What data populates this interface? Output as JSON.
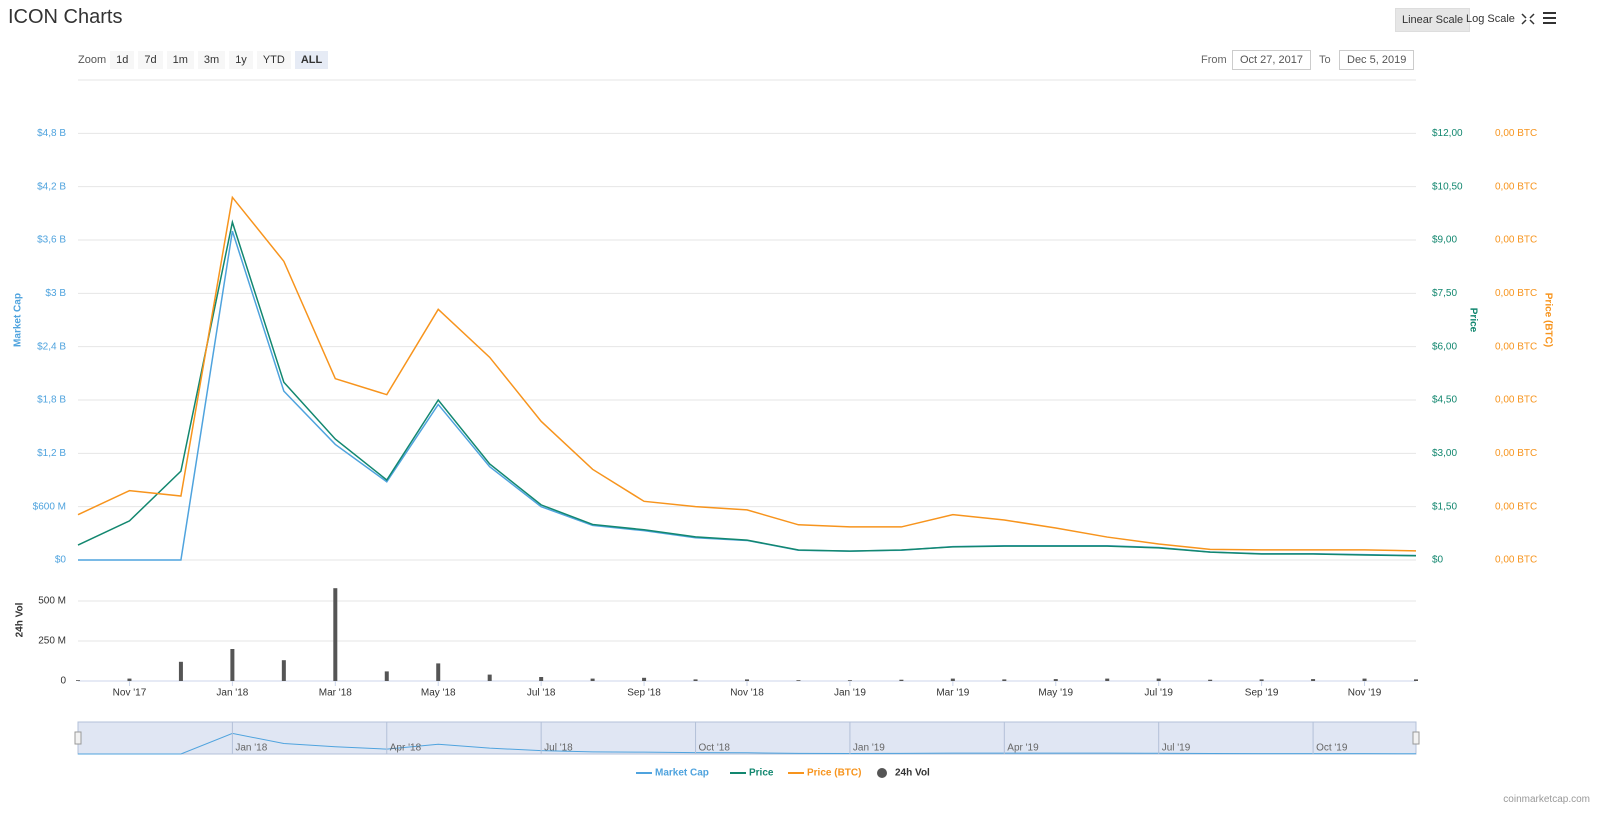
{
  "header": {
    "title": "ICON Charts",
    "scale_buttons": [
      "Linear Scale",
      "Log Scale"
    ]
  },
  "zoom": {
    "label": "Zoom",
    "options": [
      "1d",
      "7d",
      "1m",
      "3m",
      "1y",
      "YTD",
      "ALL"
    ],
    "active": "ALL"
  },
  "range": {
    "from_label": "From",
    "from": "Oct 27, 2017",
    "to_label": "To",
    "to": "Dec 5, 2019"
  },
  "chart_data": {
    "type": "line",
    "x": [
      "2017-10",
      "2017-11",
      "2017-12",
      "2018-01",
      "2018-02",
      "2018-03",
      "2018-04",
      "2018-05",
      "2018-06",
      "2018-07",
      "2018-08",
      "2018-09",
      "2018-10",
      "2018-11",
      "2018-12",
      "2019-01",
      "2019-02",
      "2019-03",
      "2019-04",
      "2019-05",
      "2019-06",
      "2019-07",
      "2019-08",
      "2019-09",
      "2019-10",
      "2019-11",
      "2019-12"
    ],
    "xlim": [
      "2017-10",
      "2019-12"
    ],
    "xticks": [
      {
        "value": "2017-11",
        "label": "Nov '17"
      },
      {
        "value": "2018-01",
        "label": "Jan '18"
      },
      {
        "value": "2018-03",
        "label": "Mar '18"
      },
      {
        "value": "2018-05",
        "label": "May '18"
      },
      {
        "value": "2018-07",
        "label": "Jul '18"
      },
      {
        "value": "2018-09",
        "label": "Sep '18"
      },
      {
        "value": "2018-11",
        "label": "Nov '18"
      },
      {
        "value": "2019-01",
        "label": "Jan '19"
      },
      {
        "value": "2019-03",
        "label": "Mar '19"
      },
      {
        "value": "2019-05",
        "label": "May '19"
      },
      {
        "value": "2019-07",
        "label": "Jul '19"
      },
      {
        "value": "2019-09",
        "label": "Sep '19"
      },
      {
        "value": "2019-11",
        "label": "Nov '19"
      }
    ],
    "series": [
      {
        "name": "Market Cap",
        "color": "#4fa3de",
        "axis": "y",
        "values": [
          0,
          0,
          0,
          3700000000,
          1900000000,
          1300000000,
          880000000,
          1750000000,
          1050000000,
          600000000,
          390000000,
          330000000,
          250000000,
          220000000,
          110000000,
          100000000,
          110000000,
          150000000,
          160000000,
          160000000,
          160000000,
          140000000,
          90000000,
          70000000,
          70000000,
          60000000,
          50000000
        ]
      },
      {
        "name": "Price",
        "color": "#12876f",
        "axis": "y2",
        "values": [
          0.42,
          1.1,
          2.5,
          9.5,
          5.0,
          3.4,
          2.25,
          4.5,
          2.7,
          1.55,
          1.0,
          0.85,
          0.65,
          0.56,
          0.28,
          0.25,
          0.28,
          0.37,
          0.39,
          0.39,
          0.39,
          0.34,
          0.22,
          0.17,
          0.17,
          0.14,
          0.12
        ]
      },
      {
        "name": "Price (BTC)",
        "color": "#f7941d",
        "axis": "y3",
        "values": [
          8.5e-05,
          0.00013,
          0.00012,
          0.00068,
          0.00056,
          0.00034,
          0.00031,
          0.00047,
          0.00038,
          0.00026,
          0.00017,
          0.00011,
          0.0001,
          9.4e-05,
          6.6e-05,
          6.2e-05,
          6.2e-05,
          8.5e-05,
          7.5e-05,
          6e-05,
          4.3e-05,
          3e-05,
          2e-05,
          1.9e-05,
          1.9e-05,
          1.9e-05,
          1.7e-05
        ]
      },
      {
        "name": "24h Vol",
        "color": "#555555",
        "axis": "vol",
        "type": "bar",
        "values": [
          5000000,
          15000000,
          120000000,
          200000000,
          130000000,
          580000000,
          60000000,
          110000000,
          40000000,
          25000000,
          15000000,
          20000000,
          10000000,
          10000000,
          5000000,
          5000000,
          8000000,
          15000000,
          10000000,
          12000000,
          15000000,
          15000000,
          8000000,
          10000000,
          12000000,
          15000000,
          10000000
        ]
      }
    ],
    "ylim": [
      0,
      5400000000
    ],
    "yticks": [
      {
        "value": 0,
        "label": "$0"
      },
      {
        "value": 600000000,
        "label": "$600 M"
      },
      {
        "value": 1200000000,
        "label": "$1,2 B"
      },
      {
        "value": 1800000000,
        "label": "$1,8 B"
      },
      {
        "value": 2400000000,
        "label": "$2,4 B"
      },
      {
        "value": 3000000000,
        "label": "$3 B"
      },
      {
        "value": 3600000000,
        "label": "$3,6 B"
      },
      {
        "value": 4200000000,
        "label": "$4,2 B"
      },
      {
        "value": 4800000000,
        "label": "$4,8 B"
      }
    ],
    "y2lim": [
      0,
      13.5
    ],
    "y2ticks": [
      {
        "value": 0,
        "label": "$0"
      },
      {
        "value": 1.5,
        "label": "$1,50"
      },
      {
        "value": 3,
        "label": "$3,00"
      },
      {
        "value": 4.5,
        "label": "$4,50"
      },
      {
        "value": 6,
        "label": "$6,00"
      },
      {
        "value": 7.5,
        "label": "$7,50"
      },
      {
        "value": 9,
        "label": "$9,00"
      },
      {
        "value": 10.5,
        "label": "$10,50"
      },
      {
        "value": 12,
        "label": "$12,00"
      }
    ],
    "y3lim": [
      0,
      0.0009
    ],
    "y3ticks": [
      {
        "value": 0,
        "label": "0,00 BTC"
      },
      {
        "value": 0.0001,
        "label": "0,00 BTC"
      },
      {
        "value": 0.0002,
        "label": "0,00 BTC"
      },
      {
        "value": 0.0003,
        "label": "0,00 BTC"
      },
      {
        "value": 0.0004,
        "label": "0,00 BTC"
      },
      {
        "value": 0.0005,
        "label": "0,00 BTC"
      },
      {
        "value": 0.0006,
        "label": "0,00 BTC"
      },
      {
        "value": 0.0007,
        "label": "0,00 BTC"
      },
      {
        "value": 0.0008,
        "label": "0,00 BTC"
      }
    ],
    "vol_ylim": [
      0,
      625000000
    ],
    "vol_yticks": [
      0,
      {
        "value": 250000000,
        "label": "250 M"
      },
      {
        "value": 500000000,
        "label": "500 M"
      }
    ],
    "y_label": "Market Cap",
    "y2_label": "Price",
    "y3_label": "Price (BTC)",
    "vol_label": "24h Vol",
    "grid": true,
    "navigator_xticks": [
      {
        "value": "2018-01",
        "label": "Jan '18"
      },
      {
        "value": "2018-04",
        "label": "Apr '18"
      },
      {
        "value": "2018-07",
        "label": "Jul '18"
      },
      {
        "value": "2018-10",
        "label": "Oct '18"
      },
      {
        "value": "2019-01",
        "label": "Jan '19"
      },
      {
        "value": "2019-04",
        "label": "Apr '19"
      },
      {
        "value": "2019-07",
        "label": "Jul '19"
      },
      {
        "value": "2019-10",
        "label": "Oct '19"
      }
    ]
  },
  "credit": "coinmarketcap.com"
}
